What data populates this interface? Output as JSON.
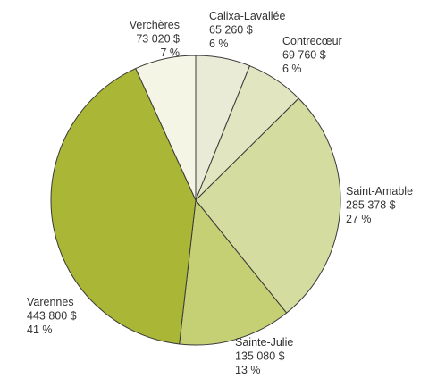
{
  "chart_data": {
    "type": "pie",
    "title": "",
    "start_angle_deg": 0,
    "direction": "clockwise",
    "slices": [
      {
        "name": "Calixa-Lavallée",
        "value": 65260,
        "value_label": "65 260 $",
        "percent_label": "6 %",
        "color": "#e9ebd6"
      },
      {
        "name": "Contrecœur",
        "value": 69760,
        "value_label": "69 760 $",
        "percent_label": "6 %",
        "color": "#e2e6c0"
      },
      {
        "name": "Saint-Amable",
        "value": 285378,
        "value_label": "285 378 $",
        "percent_label": "27 %",
        "color": "#d5dc9f"
      },
      {
        "name": "Sainte-Julie",
        "value": 135080,
        "value_label": "135 080 $",
        "percent_label": "13 %",
        "color": "#c5d074"
      },
      {
        "name": "Varennes",
        "value": 443800,
        "value_label": "443 800 $",
        "percent_label": "41 %",
        "color": "#aab635"
      },
      {
        "name": "Verchères",
        "value": 73020,
        "value_label": "73 020 $",
        "percent_label": "7 %",
        "color": "#f5f5e6"
      }
    ]
  }
}
